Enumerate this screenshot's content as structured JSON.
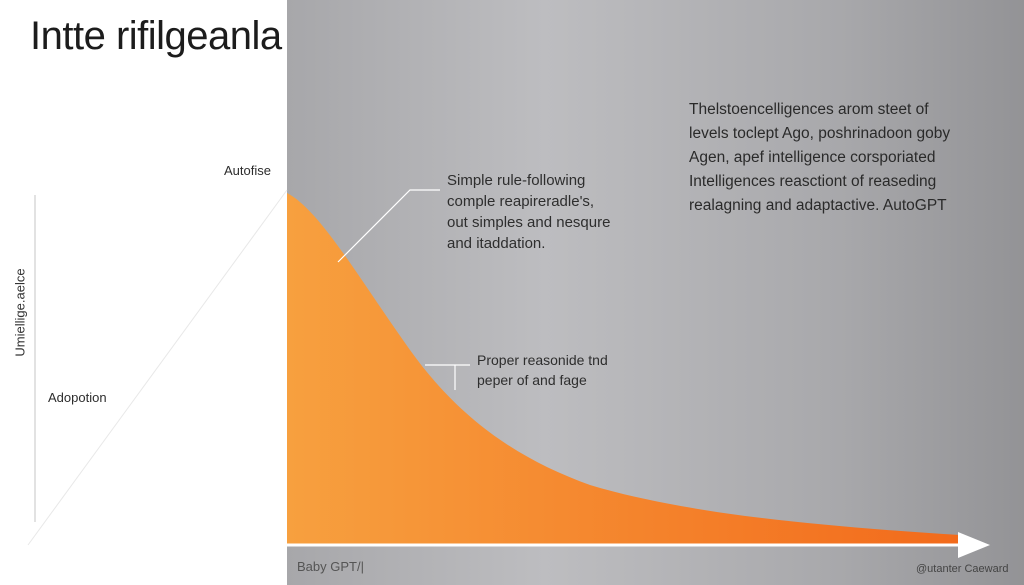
{
  "title": "Intte rifilgeanla",
  "labels": {
    "peak": "Autofise",
    "y_axis": "Umiellige.aelce",
    "adoption": "Adopotion",
    "x_start": "Baby GPT/|",
    "credit": "@utanter Caeward"
  },
  "annotations": {
    "upper": [
      "Simple rule-following",
      "comple reapireradle's,",
      "out simples and nesqure",
      "and itaddation."
    ],
    "middle": [
      "Proper reasonide tnd",
      "peper of and fage"
    ],
    "top_right": [
      "Thelstoencelligences arom steet of",
      "levels toclept Ago, poshrinadoon goby",
      "Agen, apef intelligence corsporiated",
      "Intelligences reasctiont of reaseding",
      "realagning and adaptactive. AutoGPT"
    ]
  },
  "colors": {
    "curve_fill_start": "#f7a03f",
    "curve_fill_end": "#f26a1b",
    "panel_gray": "#b4b4b7",
    "axis": "#ffffff"
  }
}
